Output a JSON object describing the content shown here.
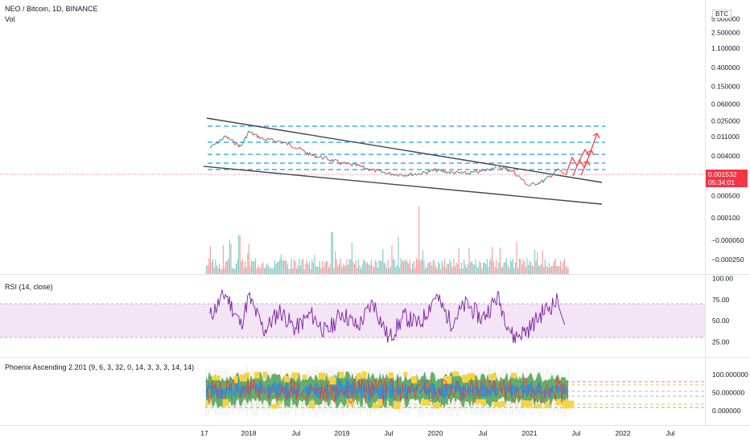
{
  "header": {
    "symbol": "NEO / Bitcoin, 1D, BINANCE",
    "volume_label": "Vol"
  },
  "price_axis": {
    "unit": "BTC",
    "ticks": [
      "5.000000",
      "2.500000",
      "1.100000",
      "0.400000",
      "0.150000",
      "0.060000",
      "0.025000",
      "0.011000",
      "0.004000",
      "0.001532",
      "0.000500",
      "0.000100",
      "−0.000050",
      "−0.000250"
    ],
    "last_price": "0.001532",
    "countdown": "05:34:01"
  },
  "rsi_pane": {
    "label": "RSI (14, close)",
    "ticks": [
      "100.00",
      "75.00",
      "50.00",
      "25.00"
    ]
  },
  "phoenix_pane": {
    "label": "Phoenix Ascending 2.201 (9, 6, 3, 32, 0, 14, 3, 3, 3, 14, 14)",
    "ticks": [
      "100.000000",
      "50.000000",
      "0.000000"
    ]
  },
  "time_axis": {
    "ticks": [
      "17",
      "2018",
      "Jul",
      "2019",
      "Jul",
      "2020",
      "Jul",
      "2021",
      "Jul",
      "2022",
      "Jul"
    ]
  },
  "colors": {
    "price_up": "#26a69a",
    "price_down": "#ef5350",
    "rsi_line": "#7b1fa2",
    "rsi_band": "#e1bee7",
    "level_lines": "#2196f3",
    "trend_lines": "#434651",
    "arrows": "#ef5350",
    "last_price": "#f23645"
  },
  "chart_data": [
    {
      "type": "line",
      "title": "NEO / Bitcoin, 1D, BINANCE",
      "x": [
        "2017-08",
        "2017-10",
        "2017-12",
        "2018-01",
        "2018-03",
        "2018-05",
        "2018-07",
        "2018-09",
        "2018-11",
        "2019-01",
        "2019-03",
        "2019-05",
        "2019-07",
        "2019-09",
        "2019-11",
        "2020-01",
        "2020-03",
        "2020-05",
        "2020-07",
        "2020-09",
        "2020-11",
        "2021-01",
        "2021-03",
        "2021-05"
      ],
      "y": [
        0.006,
        0.011,
        0.0065,
        0.014,
        0.0095,
        0.0085,
        0.0065,
        0.0042,
        0.0035,
        0.0027,
        0.0024,
        0.0019,
        0.0016,
        0.0015,
        0.0016,
        0.0019,
        0.0017,
        0.0016,
        0.0018,
        0.0023,
        0.0018,
        0.00085,
        0.0011,
        0.0021
      ],
      "log_scale": true,
      "last_value": 0.001532
    },
    {
      "type": "line",
      "title": "RSI (14, close)",
      "ylim": [
        0,
        100
      ],
      "band": [
        30,
        70
      ],
      "x": [
        "2017-08",
        "2017-10",
        "2017-12",
        "2018-01",
        "2018-03",
        "2018-05",
        "2018-07",
        "2018-09",
        "2018-11",
        "2019-01",
        "2019-03",
        "2019-05",
        "2019-07",
        "2019-09",
        "2019-11",
        "2020-01",
        "2020-03",
        "2020-05",
        "2020-07",
        "2020-09",
        "2020-11",
        "2021-01",
        "2021-03",
        "2021-05"
      ],
      "y": [
        55,
        82,
        45,
        78,
        38,
        62,
        40,
        58,
        35,
        60,
        42,
        72,
        28,
        55,
        45,
        80,
        48,
        70,
        52,
        78,
        30,
        40,
        62,
        75
      ]
    },
    {
      "type": "area",
      "title": "Phoenix Ascending 2.201 (9, 6, 3, 32, 0, 14, 3, 3, 3, 14, 14)",
      "ylim": [
        0,
        100
      ]
    }
  ]
}
